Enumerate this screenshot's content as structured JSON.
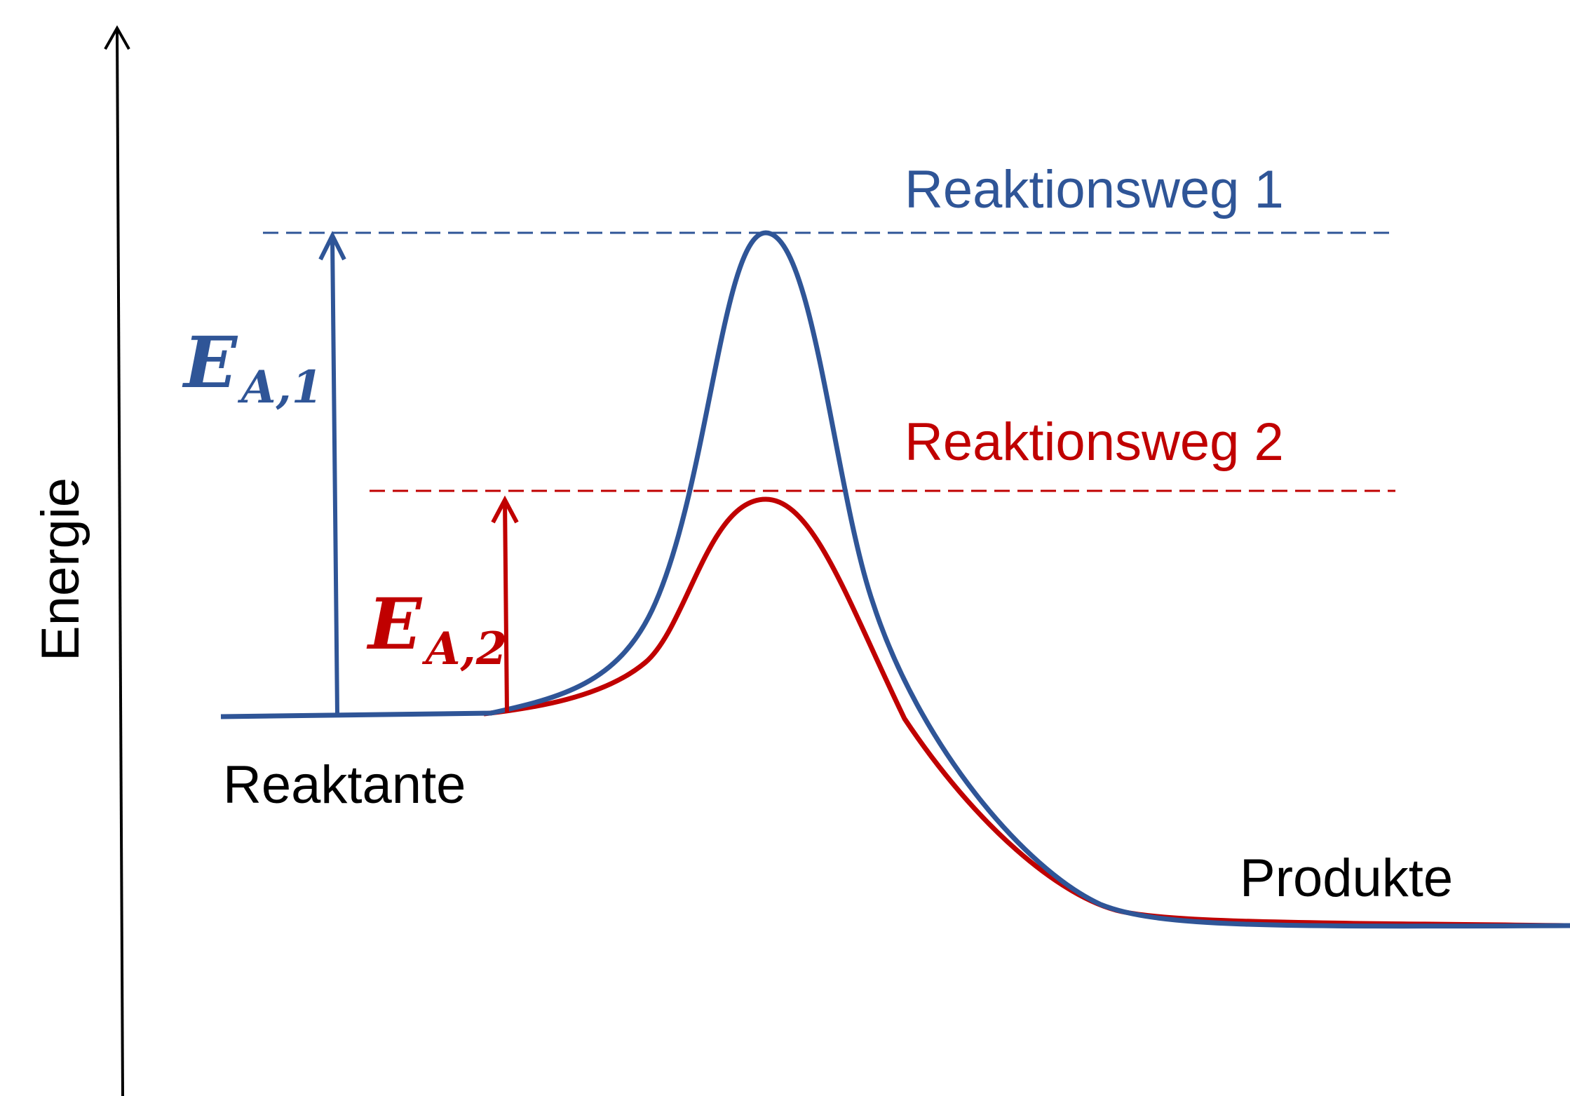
{
  "axis": {
    "ylabel": "Energie"
  },
  "states": {
    "reactants": "Reaktante",
    "products": "Produkte"
  },
  "pathways": [
    {
      "name": "Reaktionsweg 1",
      "color": "#2f5597",
      "activation_energy_label": {
        "symbol": "E",
        "subscript": "A,1"
      }
    },
    {
      "name": "Reaktionsweg 2",
      "color": "#c00000",
      "activation_energy_label": {
        "symbol": "E",
        "subscript": "A,2"
      }
    }
  ],
  "colors": {
    "axis": "#000000",
    "text": "#000000"
  }
}
